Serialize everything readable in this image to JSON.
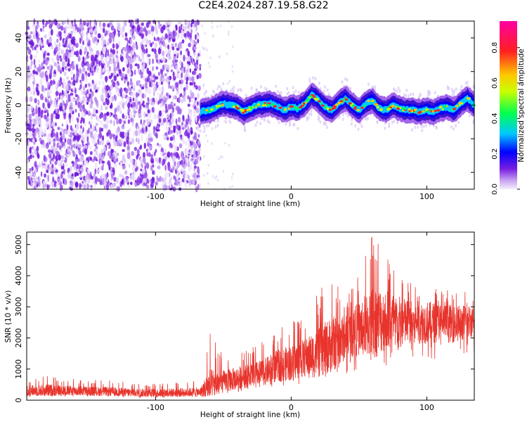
{
  "title": "C2E4.2024.287.19.58.G22",
  "chart_data": [
    {
      "type": "heatmap",
      "xlabel": "Height of straight line (km)",
      "ylabel": "Frequency (Hz)",
      "xlim": [
        -195,
        135
      ],
      "ylim": [
        -50,
        50
      ],
      "xticks": [
        -100,
        0,
        100
      ],
      "yticks": [
        -40,
        -20,
        0,
        20,
        40
      ],
      "colorbar": {
        "label": "Normalized spectral amplitude",
        "range": [
          0.0,
          0.95
        ],
        "ticks": [
          0.0,
          0.2,
          0.4,
          0.6,
          0.8
        ],
        "tick_labels": [
          "0.0",
          "0.2",
          "0.4",
          "0.6",
          "0.8"
        ],
        "colormap": "rainbow (purple → blue → cyan → green → yellow → orange → red → magenta)"
      },
      "regions": [
        {
          "x_range": [
            -195,
            -67
          ],
          "description": "broadband noise, amplitude about 0.0–0.1 across all frequencies"
        },
        {
          "x_range": [
            -67,
            135
          ],
          "description": "narrow signal band near 0 Hz, peak amplitude up to about 0.9"
        }
      ],
      "ridge": {
        "x": [
          -67,
          -60,
          -50,
          -40,
          -35,
          -25,
          -15,
          -5,
          0,
          5,
          10,
          15,
          20,
          25,
          30,
          35,
          40,
          45,
          50,
          55,
          60,
          65,
          70,
          75,
          80,
          85,
          90,
          95,
          100,
          105,
          110,
          115,
          120,
          125,
          130,
          135
        ],
        "y": [
          -4,
          -3,
          1,
          -1,
          -4,
          0,
          1,
          -3,
          -1,
          -2,
          1,
          6,
          3,
          -1,
          -3,
          1,
          4,
          0,
          -3,
          1,
          3,
          -2,
          -3,
          0,
          -2,
          -3,
          -3,
          -4,
          -3,
          -4,
          -2,
          -1,
          -3,
          1,
          4,
          0
        ]
      }
    },
    {
      "type": "line",
      "xlabel": "Height of straight line (km)",
      "ylabel": "SNR (10 * v/v)",
      "xlim": [
        -195,
        135
      ],
      "ylim": [
        0,
        5400
      ],
      "xticks": [
        -100,
        0,
        100
      ],
      "yticks": [
        0,
        1000,
        2000,
        3000,
        4000,
        5000
      ],
      "color": "#e8342c",
      "series": [
        {
          "x": [
            -195,
            -180,
            -160,
            -140,
            -120,
            -100,
            -80,
            -67,
            -60,
            -50,
            -40,
            -30,
            -20,
            -10,
            0,
            10,
            20,
            30,
            40,
            50,
            60,
            70,
            80,
            90,
            100,
            110,
            120,
            130,
            135
          ],
          "mean": [
            300,
            320,
            300,
            280,
            250,
            230,
            250,
            260,
            450,
            600,
            700,
            800,
            900,
            1100,
            1200,
            1350,
            1500,
            1800,
            2000,
            2300,
            2500,
            2600,
            2500,
            2500,
            2500,
            2500,
            2450,
            2500,
            2600
          ],
          "min": [
            100,
            120,
            100,
            100,
            80,
            60,
            80,
            100,
            150,
            200,
            250,
            300,
            350,
            400,
            450,
            550,
            600,
            700,
            800,
            900,
            1000,
            1100,
            1100,
            1200,
            1300,
            1300,
            1300,
            1400,
            1500
          ],
          "max": [
            700,
            850,
            700,
            650,
            600,
            550,
            600,
            650,
            2200,
            1500,
            1600,
            1700,
            1900,
            2300,
            2500,
            2800,
            3500,
            4000,
            3400,
            4100,
            5400,
            4700,
            4200,
            3700,
            3800,
            3600,
            3500,
            3500,
            3400
          ]
        }
      ]
    }
  ]
}
